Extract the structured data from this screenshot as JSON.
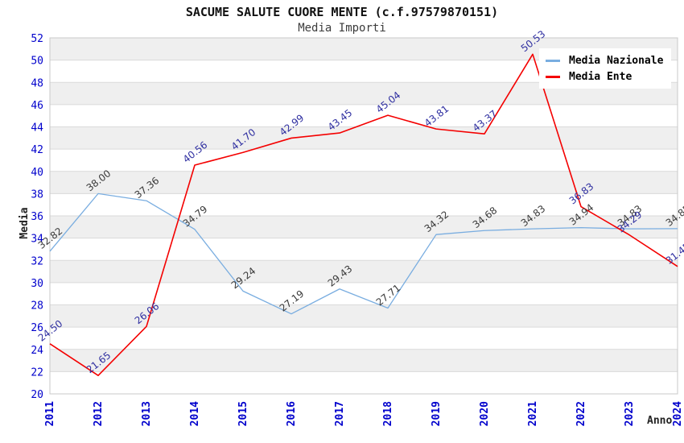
{
  "chart_data": {
    "type": "line",
    "title": "SACUME SALUTE CUORE MENTE (c.f.97579870151)",
    "subtitle": "Media Importi",
    "xlabel": "Anno",
    "ylabel": "Media",
    "ylim": [
      20,
      52
    ],
    "ytick_step": 2,
    "y_tick_labels": [
      "20",
      "22",
      "24",
      "26",
      "28",
      "30",
      "32",
      "34",
      "36",
      "38",
      "40",
      "42",
      "44",
      "46",
      "48",
      "50",
      "52"
    ],
    "categories": [
      "2011",
      "2012",
      "2013",
      "2014",
      "2015",
      "2016",
      "2017",
      "2018",
      "2019",
      "2020",
      "2021",
      "2022",
      "2023",
      "2024"
    ],
    "series": [
      {
        "name": "Media Nazionale",
        "color": "#79ade0",
        "label_color": "#3a3a3a",
        "values": [
          32.82,
          38.0,
          37.36,
          34.79,
          29.24,
          27.19,
          29.43,
          27.71,
          34.32,
          34.68,
          34.83,
          34.94,
          34.83,
          34.85
        ]
      },
      {
        "name": "Media Ente",
        "color": "#f40000",
        "label_color": "#2e2ea0",
        "values": [
          24.5,
          21.65,
          26.06,
          40.56,
          41.7,
          42.99,
          43.45,
          45.04,
          43.81,
          43.37,
          50.53,
          36.83,
          34.29,
          31.45
        ]
      }
    ],
    "legend_position": "top-right",
    "grid": "horizontal-bands",
    "colors": {
      "band": "#efefef",
      "grid_line": "#dadada",
      "plot_border": "#c8c8c8",
      "tick_label": "#0000cc"
    }
  }
}
